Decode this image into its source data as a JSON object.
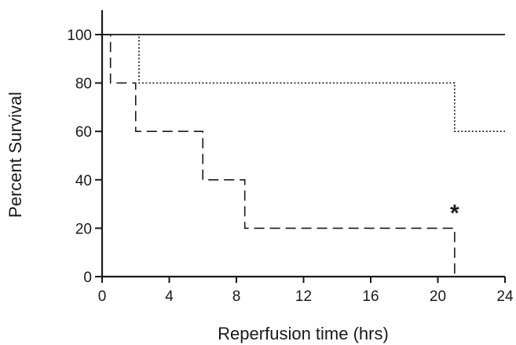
{
  "chart_data": {
    "type": "line",
    "subtype": "kaplan-meier step survival",
    "title": "",
    "xlabel": "Reperfusion time (hrs)",
    "ylabel": "Percent Survival",
    "xlim": [
      0,
      24
    ],
    "ylim": [
      0,
      100
    ],
    "xticks": [
      0,
      4,
      8,
      12,
      16,
      20,
      24
    ],
    "yticks": [
      0,
      20,
      40,
      60,
      80,
      100
    ],
    "grid": false,
    "legend": "none",
    "series": [
      {
        "line_style": "solid",
        "color": "#1a1a1a",
        "x": [
          0,
          24
        ],
        "y": [
          100,
          100
        ]
      },
      {
        "line_style": "dotted",
        "color": "#1a1a1a",
        "x": [
          0,
          2.2,
          21,
          24
        ],
        "y": [
          100,
          80,
          60,
          60
        ]
      },
      {
        "line_style": "dashed",
        "color": "#1a1a1a",
        "x": [
          0,
          0.5,
          2,
          6,
          8.5,
          21
        ],
        "y": [
          100,
          80,
          60,
          40,
          20,
          0
        ]
      }
    ],
    "annotations": [
      {
        "text": "*",
        "x": 21,
        "y": 27
      }
    ]
  }
}
